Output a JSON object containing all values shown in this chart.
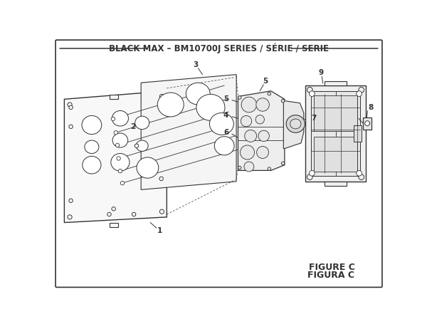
{
  "title": "BLACK MAX – BM10700J SERIES / SÉRIE / SERIE",
  "figure_label": "FIGURE C",
  "figura_label": "FIGURA C",
  "bg_color": "#ffffff",
  "line_color": "#333333",
  "border_color": "#333333",
  "title_fontsize": 8.5,
  "label_fontsize": 7.5,
  "figure_label_fontsize": 9
}
